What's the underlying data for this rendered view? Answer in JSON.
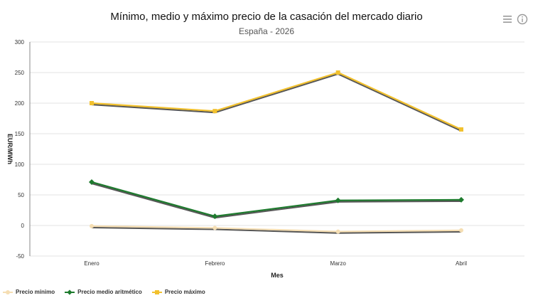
{
  "chart_data": {
    "type": "line",
    "title": "Mínimo, medio y máximo precio de la casación del mercado diario",
    "subtitle": "España - 2026",
    "xlabel": "Mes",
    "ylabel": "EUR/MWh",
    "categories": [
      "Enero",
      "Febrero",
      "Marzo",
      "Abril"
    ],
    "ylim": [
      -50,
      300
    ],
    "yticks": [
      -50,
      0,
      50,
      100,
      150,
      200,
      250,
      300
    ],
    "grid": true,
    "legend_position": "bottom-left",
    "series": [
      {
        "name": "Precio mínimo",
        "color": "#f5deb3",
        "marker": "circle",
        "values": [
          -1,
          -4,
          -10,
          -8
        ]
      },
      {
        "name": "Precio medio aritmético",
        "color": "#1e7b2e",
        "marker": "diamond",
        "values": [
          71,
          15,
          41,
          42
        ]
      },
      {
        "name": "Precio máximo",
        "color": "#f2c12e",
        "marker": "square",
        "values": [
          200,
          187,
          250,
          157
        ]
      }
    ]
  },
  "toolbar": {
    "menu_icon": "hamburger-menu-icon",
    "info_icon": "info-icon"
  }
}
